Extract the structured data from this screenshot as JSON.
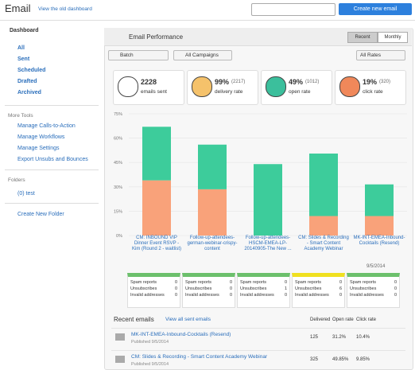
{
  "header": {
    "title": "Email",
    "old_dashboard": "View the old dashboard",
    "create": "Create new email"
  },
  "sidebar": {
    "dashboard": "Dashboard",
    "items": [
      "All",
      "Sent",
      "Scheduled",
      "Drafted",
      "Archived"
    ],
    "more_tools": "More Tools",
    "tools": [
      "Manage Calls-to-Action",
      "Manage Workflows",
      "Manage Settings",
      "Export Unsubs and Bounces"
    ],
    "folders": "Folders",
    "folder_items": [
      "(0) test"
    ],
    "new_folder": "Create New Folder"
  },
  "panel": {
    "title": "Email Performance",
    "tabs": [
      "Recent",
      "Monthly"
    ],
    "filters": [
      "Batch",
      "All Campaigns",
      "All Rates"
    ],
    "stats": [
      {
        "value": "2228",
        "label": "emails sent"
      },
      {
        "value": "99%",
        "count": "(2217)",
        "label": "delivery rate"
      },
      {
        "value": "49%",
        "count": "(1012)",
        "label": "open rate"
      },
      {
        "value": "19%",
        "count": "(320)",
        "label": "click rate"
      }
    ]
  },
  "chart_data": {
    "type": "bar",
    "stacked": true,
    "categories": [
      "CM: INBOUND VIP Dinner Event RSVP - Kim (Round 2 - waitlist)",
      "Follow-up-attendees-german-webinar-crispy-content",
      "Follow-up-attendees-HSCM-EMEA-LP-20140905-The New ...",
      "CM: Slides & Recording - Smart Content Academy Webinar",
      "MK-INT-EMEA-Inbound-Cocktails (Resend)"
    ],
    "dates": [
      "9/5/2014"
    ],
    "series": [
      {
        "color": "#f9a27a",
        "values": [
          34,
          28.5,
          0,
          12,
          12
        ]
      },
      {
        "color": "#3dcc9b",
        "values": [
          33,
          27.5,
          44,
          38.5,
          19.5
        ]
      }
    ],
    "ylim": [
      0,
      75
    ],
    "yticks": [
      {
        "value": 0,
        "label": "0%"
      },
      {
        "value": 15,
        "label": "15%"
      },
      {
        "value": 30,
        "label": "30%"
      },
      {
        "value": 45,
        "label": "45%"
      },
      {
        "value": 60,
        "label": "60%"
      },
      {
        "value": 75,
        "label": "75%"
      }
    ],
    "grid": true
  },
  "spam": {
    "labels": [
      "Spam reports",
      "Unsubscribes",
      "Invalid addresses"
    ],
    "colors": [
      "#6cc06c",
      "#6cc06c",
      "#6cc06c",
      "#f0e020",
      "#6cc06c"
    ],
    "values": [
      [
        0,
        0,
        0
      ],
      [
        0,
        0,
        0
      ],
      [
        0,
        1,
        0
      ],
      [
        0,
        6,
        0
      ],
      [
        0,
        0,
        0
      ]
    ]
  },
  "recent": {
    "title": "Recent emails",
    "view_all": "View all sent emails",
    "columns": [
      "Delivered",
      "Open rate",
      "Click rate"
    ],
    "rows": [
      {
        "name": "MK-INT-EMEA-Inbound-Cocktails (Resend)",
        "published": "Published 9/5/2014",
        "delivered": "125",
        "open": "31.2%",
        "click": "10.4%"
      },
      {
        "name": "CM: Slides & Recording - Smart Content Academy Webinar",
        "published": "Published 9/5/2014",
        "delivered": "325",
        "open": "49.85%",
        "click": "9.85%"
      }
    ]
  }
}
